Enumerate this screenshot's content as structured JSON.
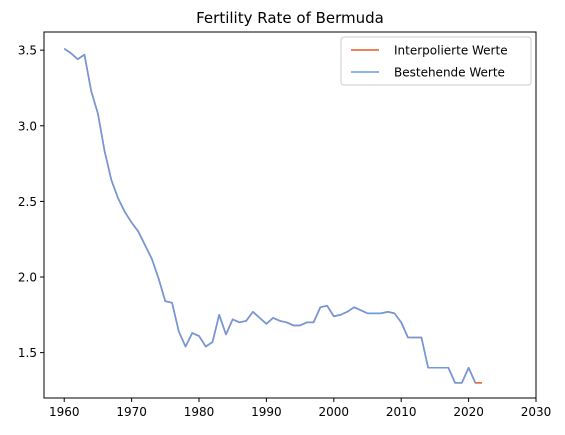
{
  "chart_data": {
    "type": "line",
    "title": "Fertility Rate of Bermuda",
    "xlabel": "",
    "ylabel": "",
    "xlim": [
      1957,
      2030
    ],
    "ylim": [
      1.2,
      3.62
    ],
    "x_ticks": [
      1960,
      1970,
      1980,
      1990,
      2000,
      2010,
      2020,
      2030
    ],
    "y_ticks": [
      1.5,
      2.0,
      2.5,
      3.0,
      3.5
    ],
    "x_tick_labels": [
      "1960",
      "1970",
      "1980",
      "1990",
      "2000",
      "2010",
      "2020",
      "2030"
    ],
    "y_tick_labels": [
      "1.5",
      "2.0",
      "2.5",
      "3.0",
      "3.5"
    ],
    "grid": false,
    "legend_position": "top-right",
    "series": [
      {
        "name": "Interpolierte Werte",
        "color": "#e8582a",
        "x": [
          1960,
          1961,
          1962,
          1963,
          1964,
          1965,
          1966,
          1967,
          1968,
          1969,
          1970,
          1971,
          1972,
          1973,
          1974,
          1975,
          1976,
          1977,
          1978,
          1979,
          1980,
          1981,
          1982,
          1983,
          1984,
          1985,
          1986,
          1987,
          1988,
          1989,
          1990,
          1991,
          1992,
          1993,
          1994,
          1995,
          1996,
          1997,
          1998,
          1999,
          2000,
          2001,
          2002,
          2003,
          2004,
          2005,
          2006,
          2007,
          2008,
          2009,
          2010,
          2011,
          2012,
          2013,
          2014,
          2015,
          2016,
          2017,
          2018,
          2019,
          2020,
          2021,
          2022
        ],
        "values": [
          3.51,
          3.48,
          3.44,
          3.47,
          3.23,
          3.08,
          2.83,
          2.64,
          2.52,
          2.43,
          2.36,
          2.3,
          2.21,
          2.12,
          1.99,
          1.84,
          1.83,
          1.64,
          1.54,
          1.63,
          1.61,
          1.54,
          1.57,
          1.75,
          1.62,
          1.72,
          1.7,
          1.71,
          1.77,
          1.73,
          1.69,
          1.73,
          1.71,
          1.7,
          1.68,
          1.68,
          1.7,
          1.7,
          1.8,
          1.81,
          1.74,
          1.75,
          1.77,
          1.8,
          1.78,
          1.76,
          1.76,
          1.76,
          1.77,
          1.76,
          1.7,
          1.6,
          1.6,
          1.6,
          1.4,
          1.4,
          1.4,
          1.4,
          1.3,
          1.3,
          1.4,
          1.3,
          1.3
        ]
      },
      {
        "name": "Bestehende Werte",
        "color": "#6d9ae0",
        "x": [
          1960,
          1961,
          1962,
          1963,
          1964,
          1965,
          1966,
          1967,
          1968,
          1969,
          1970,
          1971,
          1972,
          1973,
          1974,
          1975,
          1976,
          1977,
          1978,
          1979,
          1980,
          1981,
          1982,
          1983,
          1984,
          1985,
          1986,
          1987,
          1988,
          1989,
          1990,
          1991,
          1992,
          1993,
          1994,
          1995,
          1996,
          1997,
          1998,
          1999,
          2000,
          2001,
          2002,
          2003,
          2004,
          2005,
          2006,
          2007,
          2008,
          2009,
          2010,
          2011,
          2012,
          2013,
          2014,
          2015,
          2016,
          2017,
          2018,
          2019,
          2020,
          2021
        ],
        "values": [
          3.51,
          3.48,
          3.44,
          3.47,
          3.23,
          3.08,
          2.83,
          2.64,
          2.52,
          2.43,
          2.36,
          2.3,
          2.21,
          2.12,
          1.99,
          1.84,
          1.83,
          1.64,
          1.54,
          1.63,
          1.61,
          1.54,
          1.57,
          1.75,
          1.62,
          1.72,
          1.7,
          1.71,
          1.77,
          1.73,
          1.69,
          1.73,
          1.71,
          1.7,
          1.68,
          1.68,
          1.7,
          1.7,
          1.8,
          1.81,
          1.74,
          1.75,
          1.77,
          1.8,
          1.78,
          1.76,
          1.76,
          1.76,
          1.77,
          1.76,
          1.7,
          1.6,
          1.6,
          1.6,
          1.4,
          1.4,
          1.4,
          1.4,
          1.3,
          1.3,
          1.4,
          1.3
        ]
      }
    ]
  }
}
